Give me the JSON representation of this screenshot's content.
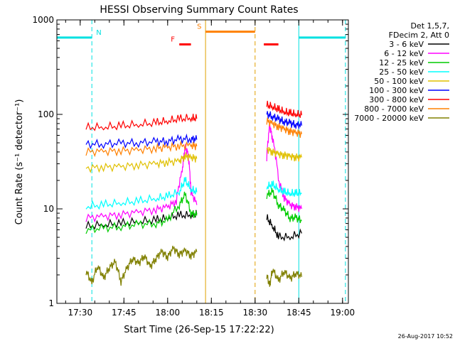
{
  "chart_data": {
    "type": "line",
    "title": "HESSI Observing Summary Count Rates",
    "xlabel": "Start Time (26-Sep-15 17:22:22)",
    "ylabel": "Count Rate (s⁻¹ detector⁻¹)",
    "xlim_min": [
      1042,
      1142
    ],
    "ylim": [
      1,
      1000
    ],
    "yscale": "log",
    "grid": false,
    "legend_position": "right",
    "x_ticks": [
      "17:30",
      "17:45",
      "18:00",
      "18:15",
      "18:30",
      "18:45",
      "19:00"
    ],
    "x_tick_min": [
      1050,
      1065,
      1080,
      1095,
      1110,
      1125,
      1140
    ],
    "y_ticks": [
      "1",
      "10",
      "100",
      "1000"
    ],
    "y_tick_values": [
      1,
      10,
      100,
      1000
    ],
    "legend_header": [
      "Det 1,5,7,",
      "FDecim 2, Att 0"
    ],
    "series": [
      {
        "name": "3 - 6 keV",
        "color": "#000000",
        "segments": [
          [
            [
              1052,
              6.5
            ],
            [
              1058,
              6.8
            ],
            [
              1064,
              7.0
            ],
            [
              1070,
              7.3
            ],
            [
              1076,
              7.6
            ],
            [
              1080,
              8.0
            ],
            [
              1084,
              8.5
            ],
            [
              1088,
              8.5
            ],
            [
              1090,
              8.8
            ]
          ],
          [
            [
              1114,
              8.0
            ],
            [
              1116,
              6.5
            ],
            [
              1118,
              5.0
            ],
            [
              1122,
              5.0
            ],
            [
              1126,
              5.5
            ]
          ]
        ]
      },
      {
        "name": "6 - 12 keV",
        "color": "#ff00ff",
        "segments": [
          [
            [
              1052,
              8.0
            ],
            [
              1058,
              8.3
            ],
            [
              1064,
              8.7
            ],
            [
              1070,
              9.2
            ],
            [
              1076,
              9.8
            ],
            [
              1080,
              10.5
            ],
            [
              1083,
              12.0
            ],
            [
              1085,
              25.0
            ],
            [
              1086,
              45.0
            ],
            [
              1087,
              38.0
            ],
            [
              1088,
              15.0
            ],
            [
              1090,
              11.0
            ]
          ],
          [
            [
              1114,
              35.0
            ],
            [
              1115,
              75.0
            ],
            [
              1116,
              55.0
            ],
            [
              1118,
              20.0
            ],
            [
              1120,
              13.0
            ],
            [
              1122,
              11.0
            ],
            [
              1124,
              10.5
            ],
            [
              1126,
              10.0
            ]
          ]
        ]
      },
      {
        "name": "12 - 25 keV",
        "color": "#00cc00",
        "segments": [
          [
            [
              1052,
              6.0
            ],
            [
              1058,
              6.2
            ],
            [
              1064,
              6.5
            ],
            [
              1070,
              6.8
            ],
            [
              1076,
              7.0
            ],
            [
              1080,
              7.5
            ],
            [
              1084,
              11.0
            ],
            [
              1086,
              14.0
            ],
            [
              1088,
              9.0
            ],
            [
              1090,
              8.5
            ]
          ],
          [
            [
              1114,
              14.0
            ],
            [
              1116,
              15.0
            ],
            [
              1118,
              11.0
            ],
            [
              1120,
              9.5
            ],
            [
              1122,
              8.0
            ],
            [
              1124,
              8.0
            ],
            [
              1126,
              7.5
            ]
          ]
        ]
      },
      {
        "name": "25 - 50 keV",
        "color": "#00ffff",
        "segments": [
          [
            [
              1052,
              10.5
            ],
            [
              1058,
              11.0
            ],
            [
              1064,
              11.5
            ],
            [
              1070,
              12.0
            ],
            [
              1076,
              12.8
            ],
            [
              1080,
              13.5
            ],
            [
              1084,
              15.0
            ],
            [
              1086,
              20.0
            ],
            [
              1088,
              16.0
            ],
            [
              1090,
              15.0
            ]
          ],
          [
            [
              1114,
              17.0
            ],
            [
              1116,
              18.0
            ],
            [
              1118,
              16.0
            ],
            [
              1120,
              15.0
            ],
            [
              1122,
              14.5
            ],
            [
              1124,
              14.5
            ],
            [
              1126,
              14.5
            ]
          ]
        ]
      },
      {
        "name": "50 - 100 keV",
        "color": "#e0c000",
        "segments": [
          [
            [
              1052,
              27.0
            ],
            [
              1058,
              27.5
            ],
            [
              1064,
              28.0
            ],
            [
              1070,
              29.0
            ],
            [
              1076,
              30.0
            ],
            [
              1080,
              31.0
            ],
            [
              1084,
              32.0
            ],
            [
              1086,
              36.0
            ],
            [
              1088,
              35.0
            ],
            [
              1090,
              34.0
            ]
          ],
          [
            [
              1114,
              43.0
            ],
            [
              1116,
              40.0
            ],
            [
              1118,
              38.0
            ],
            [
              1120,
              37.0
            ],
            [
              1122,
              36.0
            ],
            [
              1124,
              35.0
            ],
            [
              1126,
              35.0
            ]
          ]
        ]
      },
      {
        "name": "100 - 300 keV",
        "color": "#0000ff",
        "segments": [
          [
            [
              1052,
              48.0
            ],
            [
              1058,
              48.5
            ],
            [
              1064,
              49.0
            ],
            [
              1070,
              50.0
            ],
            [
              1076,
              51.0
            ],
            [
              1080,
              52.0
            ],
            [
              1084,
              54.0
            ],
            [
              1088,
              55.0
            ],
            [
              1090,
              54.0
            ]
          ],
          [
            [
              1114,
              100.0
            ],
            [
              1116,
              95.0
            ],
            [
              1118,
              88.0
            ],
            [
              1120,
              84.0
            ],
            [
              1122,
              80.0
            ],
            [
              1124,
              78.0
            ],
            [
              1126,
              76.0
            ]
          ]
        ]
      },
      {
        "name": "300 - 800 keV",
        "color": "#ff0000",
        "segments": [
          [
            [
              1052,
              72.0
            ],
            [
              1058,
              73.0
            ],
            [
              1064,
              75.0
            ],
            [
              1070,
              78.0
            ],
            [
              1076,
              81.0
            ],
            [
              1080,
              85.0
            ],
            [
              1084,
              89.0
            ],
            [
              1088,
              91.0
            ],
            [
              1090,
              90.0
            ]
          ],
          [
            [
              1114,
              125.0
            ],
            [
              1116,
              120.0
            ],
            [
              1118,
              112.0
            ],
            [
              1120,
              106.0
            ],
            [
              1122,
              102.0
            ],
            [
              1124,
              100.0
            ],
            [
              1126,
              98.0
            ]
          ]
        ]
      },
      {
        "name": "800 - 7000 keV",
        "color": "#ff8000",
        "segments": [
          [
            [
              1052,
              40.0
            ],
            [
              1058,
              40.5
            ],
            [
              1064,
              41.0
            ],
            [
              1070,
              42.0
            ],
            [
              1076,
              43.5
            ],
            [
              1080,
              45.0
            ],
            [
              1084,
              46.0
            ],
            [
              1088,
              47.0
            ],
            [
              1090,
              46.0
            ]
          ],
          [
            [
              1114,
              85.0
            ],
            [
              1116,
              80.0
            ],
            [
              1118,
              74.0
            ],
            [
              1120,
              70.0
            ],
            [
              1122,
              66.0
            ],
            [
              1124,
              64.0
            ],
            [
              1126,
              62.0
            ]
          ]
        ]
      },
      {
        "name": "7000 - 20000 keV",
        "color": "#808000",
        "segments": [
          [
            [
              1052,
              2.2
            ],
            [
              1054,
              1.6
            ],
            [
              1056,
              2.5
            ],
            [
              1058,
              1.8
            ],
            [
              1060,
              2.4
            ],
            [
              1062,
              2.7
            ],
            [
              1064,
              1.7
            ],
            [
              1066,
              2.3
            ],
            [
              1068,
              3.0
            ],
            [
              1070,
              2.6
            ],
            [
              1072,
              3.2
            ],
            [
              1074,
              2.4
            ],
            [
              1076,
              3.0
            ],
            [
              1078,
              3.5
            ],
            [
              1080,
              3.1
            ],
            [
              1082,
              3.8
            ],
            [
              1084,
              3.3
            ],
            [
              1086,
              3.6
            ],
            [
              1088,
              3.2
            ],
            [
              1090,
              3.5
            ]
          ],
          [
            [
              1114,
              2.0
            ],
            [
              1115,
              1.5
            ],
            [
              1116,
              2.3
            ],
            [
              1118,
              1.7
            ],
            [
              1120,
              2.2
            ],
            [
              1122,
              1.8
            ],
            [
              1124,
              2.1
            ],
            [
              1126,
              1.9
            ]
          ]
        ]
      }
    ],
    "indicator_bars": [
      {
        "label": "N",
        "color": "#00e0e0",
        "y": 650,
        "segments": [
          [
            1042,
            1054
          ],
          [
            1125,
            1141
          ]
        ]
      },
      {
        "label": "F",
        "color": "#ff0000",
        "y": 550,
        "segments": [
          [
            1084,
            1088
          ],
          [
            1113,
            1118
          ]
        ]
      },
      {
        "label": "S",
        "color": "#ff8000",
        "y": 750,
        "segments": [
          [
            1093,
            1110
          ]
        ]
      }
    ],
    "event_lines": [
      {
        "color": "#00e0e0",
        "style": "solid",
        "x": 1042
      },
      {
        "color": "#00e0e0",
        "style": "dashed",
        "x": 1054
      },
      {
        "color": "#00e0e0",
        "style": "solid",
        "x": 1125
      },
      {
        "color": "#00e0e0",
        "style": "dashed",
        "x": 1141
      },
      {
        "color": "#e0a000",
        "style": "solid",
        "x": 1093
      },
      {
        "color": "#e0a000",
        "style": "dashed",
        "x": 1110
      }
    ]
  },
  "footer": {
    "timestamp": "26-Aug-2017 10:52"
  }
}
